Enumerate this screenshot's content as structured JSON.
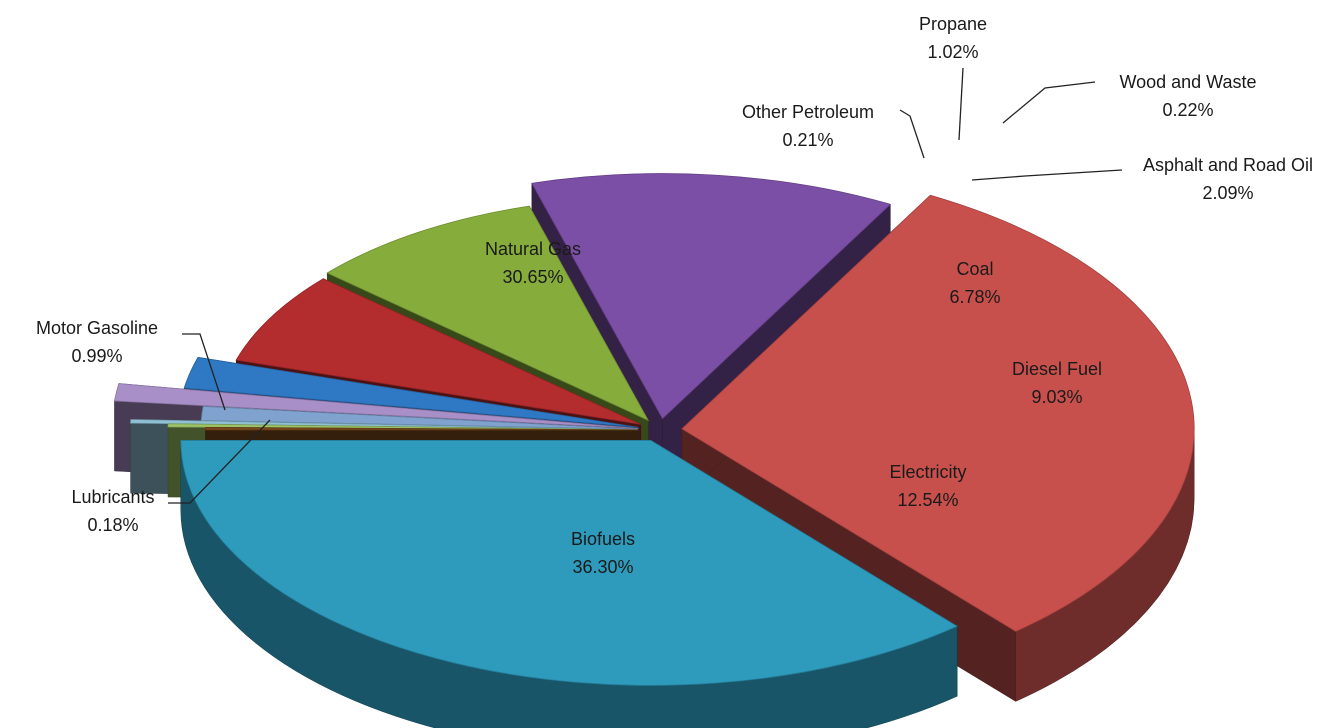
{
  "chart_data": {
    "type": "pie",
    "three_d": true,
    "exploded": true,
    "legend": "none",
    "unit": "%",
    "slices": [
      {
        "label": "Biofuels",
        "value_text": "36.30%",
        "value": 36.3,
        "color": "#2e9bbd"
      },
      {
        "label": "Natural Gas",
        "value_text": "30.65%",
        "value": 30.65,
        "color": "#c8504c"
      },
      {
        "label": "Electricity",
        "value_text": "12.54%",
        "value": 12.54,
        "color": "#7c4fa7"
      },
      {
        "label": "Diesel Fuel",
        "value_text": "9.03%",
        "value": 9.03,
        "color": "#86ad3b"
      },
      {
        "label": "Coal",
        "value_text": "6.78%",
        "value": 6.78,
        "color": "#b32c2e"
      },
      {
        "label": "Asphalt and Road Oil",
        "value_text": "2.09%",
        "value": 2.09,
        "color": "#2f78c4"
      },
      {
        "label": "Propane",
        "value_text": "1.02%",
        "value": 1.02,
        "color": "#a98fc8"
      },
      {
        "label": "Motor Gasoline",
        "value_text": "0.99%",
        "value": 0.99,
        "color": "#7fa2cf"
      },
      {
        "label": "Wood and Waste",
        "value_text": "0.22%",
        "value": 0.22,
        "color": "#8fc0d4"
      },
      {
        "label": "Other Petroleum",
        "value_text": "0.21%",
        "value": 0.21,
        "color": "#9dc466"
      },
      {
        "label": "Lubricants",
        "value_text": "0.18%",
        "value": 0.18,
        "color": "#7a4a1c"
      }
    ]
  }
}
